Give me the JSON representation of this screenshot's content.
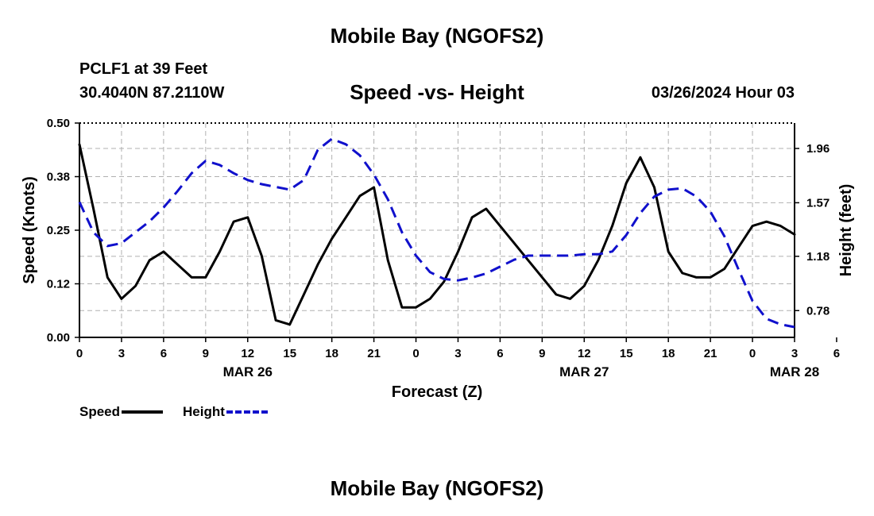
{
  "header": {
    "title": "Mobile Bay (NGOFS2)",
    "station": "PCLF1 at 39 Feet",
    "coords": "30.4040N  87.2110W",
    "subtitle": "Speed -vs- Height",
    "datetime": "03/26/2024 Hour 03"
  },
  "footer": {
    "title": "Mobile Bay (NGOFS2)"
  },
  "legend": {
    "speed": "Speed",
    "height": "Height"
  },
  "colors": {
    "speed": "#000000",
    "height": "#1010cc",
    "grid": "#b0b0b0"
  },
  "chart_data": {
    "type": "line",
    "xlabel": "Forecast (Z)",
    "ylabel": "Speed (Knots)",
    "y2label": "Height (feet)",
    "x_hours": [
      0,
      51
    ],
    "x_tick_labels": [
      "0",
      "3",
      "6",
      "9",
      "12",
      "15",
      "18",
      "21",
      "0",
      "3",
      "6",
      "9",
      "12",
      "15",
      "18",
      "21",
      "0",
      "3",
      "6"
    ],
    "date_labels": [
      {
        "hour": 12,
        "label": "MAR 26"
      },
      {
        "hour": 36,
        "label": "MAR 27"
      },
      {
        "hour": 51,
        "label": "MAR 28"
      }
    ],
    "ylim": [
      0,
      0.5
    ],
    "y_ticks": [
      "0.00",
      "0.12",
      "0.25",
      "0.38",
      "0.50"
    ],
    "y_tick_values": [
      0,
      0.125,
      0.25,
      0.375,
      0.5
    ],
    "y2lim": [
      0.585,
      2.145
    ],
    "y2_ticks": [
      "0.78",
      "1.18",
      "1.57",
      "1.96"
    ],
    "y2_tick_values": [
      0.78,
      1.175,
      1.565,
      1.96
    ],
    "grid": true,
    "series": [
      {
        "name": "Speed",
        "axis": "left",
        "style": "solid",
        "x": [
          0,
          1,
          2,
          3,
          4,
          5,
          6,
          7,
          8,
          9,
          10,
          11,
          12,
          13,
          14,
          15,
          16,
          17,
          18,
          19,
          20,
          21,
          22,
          23,
          24,
          25,
          26,
          27,
          28,
          29,
          30,
          31,
          32,
          33,
          34,
          35,
          36,
          37,
          38,
          39,
          40,
          41,
          42,
          43,
          44,
          45,
          46,
          47,
          48,
          49,
          50,
          51
        ],
        "values": [
          0.45,
          0.3,
          0.14,
          0.09,
          0.12,
          0.18,
          0.2,
          0.17,
          0.14,
          0.14,
          0.2,
          0.27,
          0.28,
          0.19,
          0.04,
          0.03,
          0.1,
          0.17,
          0.23,
          0.28,
          0.33,
          0.35,
          0.18,
          0.07,
          0.07,
          0.09,
          0.13,
          0.2,
          0.28,
          0.3,
          0.26,
          0.22,
          0.18,
          0.14,
          0.1,
          0.09,
          0.12,
          0.18,
          0.26,
          0.36,
          0.42,
          0.35,
          0.2,
          0.15,
          0.14,
          0.14,
          0.16,
          0.21,
          0.26,
          0.27,
          0.26,
          0.24
        ]
      },
      {
        "name": "Height",
        "axis": "right",
        "style": "dashed",
        "x": [
          0,
          1,
          2,
          3,
          4,
          5,
          6,
          7,
          8,
          9,
          10,
          11,
          12,
          13,
          14,
          15,
          16,
          17,
          18,
          19,
          20,
          21,
          22,
          23,
          24,
          25,
          26,
          27,
          28,
          29,
          30,
          31,
          32,
          33,
          34,
          35,
          36,
          37,
          38,
          39,
          40,
          41,
          42,
          43,
          44,
          45,
          46,
          47,
          48,
          49,
          50,
          51
        ],
        "values": [
          1.57,
          1.35,
          1.25,
          1.27,
          1.35,
          1.43,
          1.53,
          1.65,
          1.78,
          1.87,
          1.84,
          1.78,
          1.73,
          1.7,
          1.68,
          1.66,
          1.73,
          1.95,
          2.03,
          1.99,
          1.91,
          1.77,
          1.59,
          1.35,
          1.18,
          1.06,
          1.01,
          1.0,
          1.02,
          1.05,
          1.1,
          1.15,
          1.18,
          1.18,
          1.18,
          1.18,
          1.19,
          1.19,
          1.21,
          1.33,
          1.49,
          1.61,
          1.66,
          1.67,
          1.61,
          1.5,
          1.32,
          1.08,
          0.85,
          0.72,
          0.68,
          0.66
        ]
      }
    ]
  }
}
